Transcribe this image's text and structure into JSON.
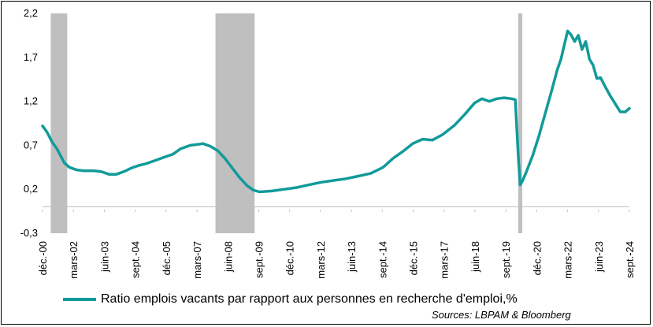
{
  "chart_data": {
    "type": "line",
    "title": "",
    "xlabel": "",
    "ylabel": "",
    "ylim": [
      -0.3,
      2.2
    ],
    "yticks": [
      "-0,3",
      "0,2",
      "0,7",
      "1,2",
      "1,7",
      "2,2"
    ],
    "ytick_values": [
      -0.3,
      0.2,
      0.7,
      1.2,
      1.7,
      2.2
    ],
    "xticks": [
      "déc.-00",
      "mars-02",
      "juin-03",
      "sept.-04",
      "déc.-05",
      "mars-07",
      "juin-08",
      "sept.-09",
      "déc.-10",
      "mars-12",
      "juin-13",
      "sept.-14",
      "déc.-15",
      "mars-17",
      "juin-18",
      "sept.-19",
      "déc.-20",
      "mars-22",
      "juin-23",
      "sept.-24"
    ],
    "xtick_values": [
      2000.917,
      2002.167,
      2003.417,
      2004.667,
      2005.917,
      2007.167,
      2008.417,
      2009.667,
      2010.917,
      2012.167,
      2013.417,
      2014.667,
      2015.917,
      2017.167,
      2018.417,
      2019.667,
      2020.917,
      2022.167,
      2023.417,
      2024.667
    ],
    "xlim": [
      2000.917,
      2024.667
    ],
    "recessions": [
      [
        2001.25,
        2001.917
      ],
      [
        2007.917,
        2009.5
      ],
      [
        2020.167,
        2020.333
      ]
    ],
    "grid": false,
    "legend_position": "bottom",
    "series": [
      {
        "name": "Ratio emplois vacants par rapport aux personnes en recherche d'emploi,%",
        "color": "#129a9a",
        "x": [
          2000.917,
          2001.1,
          2001.3,
          2001.5,
          2001.8,
          2002.0,
          2002.3,
          2002.6,
          2003.0,
          2003.3,
          2003.6,
          2003.9,
          2004.2,
          2004.5,
          2004.8,
          2005.1,
          2005.5,
          2005.9,
          2006.2,
          2006.5,
          2006.9,
          2007.2,
          2007.4,
          2007.7,
          2008.0,
          2008.3,
          2008.6,
          2008.9,
          2009.2,
          2009.45,
          2009.7,
          2010.2,
          2010.7,
          2011.2,
          2011.7,
          2012.2,
          2012.7,
          2013.2,
          2013.7,
          2014.2,
          2014.7,
          2015.1,
          2015.5,
          2015.9,
          2016.3,
          2016.7,
          2017.1,
          2017.6,
          2018.0,
          2018.4,
          2018.7,
          2019.0,
          2019.3,
          2019.6,
          2019.9,
          2020.05,
          2020.167,
          2020.25,
          2020.35,
          2020.5,
          2020.75,
          2021.0,
          2021.25,
          2021.5,
          2021.75,
          2021.9,
          2022.05,
          2022.167,
          2022.3,
          2022.45,
          2022.6,
          2022.75,
          2022.9,
          2023.05,
          2023.2,
          2023.35,
          2023.5,
          2023.7,
          2023.9,
          2024.1,
          2024.3,
          2024.5,
          2024.667
        ],
        "values": [
          0.92,
          0.85,
          0.74,
          0.66,
          0.5,
          0.45,
          0.42,
          0.41,
          0.41,
          0.4,
          0.37,
          0.37,
          0.4,
          0.44,
          0.47,
          0.49,
          0.53,
          0.57,
          0.6,
          0.66,
          0.7,
          0.71,
          0.72,
          0.69,
          0.64,
          0.55,
          0.44,
          0.33,
          0.24,
          0.19,
          0.17,
          0.18,
          0.2,
          0.22,
          0.25,
          0.28,
          0.3,
          0.32,
          0.35,
          0.38,
          0.45,
          0.55,
          0.63,
          0.72,
          0.77,
          0.76,
          0.82,
          0.93,
          1.05,
          1.18,
          1.23,
          1.2,
          1.23,
          1.24,
          1.23,
          1.22,
          0.6,
          0.25,
          0.3,
          0.4,
          0.58,
          0.8,
          1.05,
          1.3,
          1.56,
          1.68,
          1.86,
          2.0,
          1.96,
          1.88,
          1.95,
          1.79,
          1.88,
          1.68,
          1.61,
          1.46,
          1.47,
          1.36,
          1.26,
          1.17,
          1.08,
          1.08,
          1.12
        ]
      }
    ]
  },
  "legend": {
    "label": "Ratio emplois vacants par rapport aux personnes en recherche d'emploi,%"
  },
  "footer": {
    "source": "Sources: LBPAM & Bloomberg"
  }
}
